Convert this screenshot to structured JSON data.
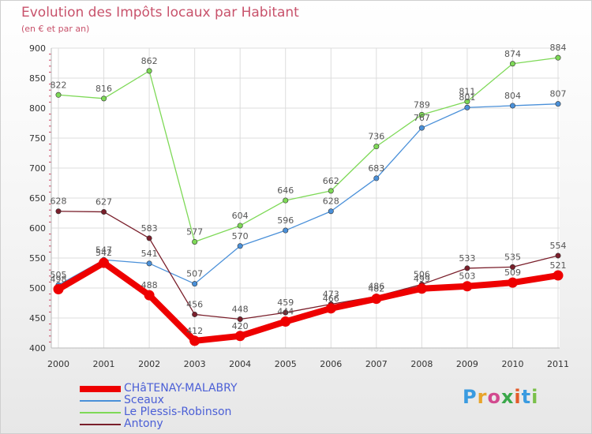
{
  "title": "Evolution des Impôts locaux par Habitant",
  "subtitle": "(en € et par an)",
  "logo": "Proxiti",
  "colors": {
    "title": "#c8526b",
    "legend_text": "#4b5fd6",
    "grid": "#dddddd",
    "axis": "#bbbbbb"
  },
  "chart_data": {
    "type": "line",
    "title": "Evolution des Impôts locaux par Habitant",
    "subtitle": "(en € et par an)",
    "x": [
      "2000",
      "2001",
      "2002",
      "2003",
      "2004",
      "2005",
      "2006",
      "2007",
      "2008",
      "2009",
      "2010",
      "2011"
    ],
    "ylim": [
      400,
      900
    ],
    "yticks": [
      400,
      450,
      500,
      550,
      600,
      650,
      700,
      750,
      800,
      850,
      900
    ],
    "grid": true,
    "legend_position": "bottom-left",
    "series": [
      {
        "name": "CHâTENAY-MALABRY",
        "color": "#ee0000",
        "values": [
          498,
          542,
          488,
          412,
          420,
          444,
          466,
          482,
          499,
          503,
          509,
          521
        ],
        "labels": [
          "498",
          "542",
          "488",
          "412",
          "420",
          "444",
          "466",
          "482",
          "499",
          "503",
          "509",
          "521"
        ]
      },
      {
        "name": "Sceaux",
        "color": "#4a90d9",
        "values": [
          505,
          547,
          541,
          507,
          570,
          596,
          628,
          683,
          767,
          801,
          804,
          807
        ],
        "labels": [
          "505",
          "547",
          "541",
          "507",
          "570",
          "596",
          "628",
          "683",
          "767",
          "801",
          "804",
          "807"
        ]
      },
      {
        "name": "Le Plessis-Robinson",
        "color": "#7ed957",
        "values": [
          822,
          816,
          862,
          577,
          604,
          646,
          662,
          736,
          789,
          811,
          874,
          884
        ],
        "labels": [
          "822",
          "816",
          "862",
          "577",
          "604",
          "646",
          "662",
          "736",
          "789",
          "811",
          "874",
          "884"
        ]
      },
      {
        "name": "Antony",
        "color": "#7a1f2b",
        "values": [
          628,
          627,
          583,
          456,
          448,
          459,
          473,
          486,
          506,
          533,
          535,
          554
        ],
        "labels": [
          "628",
          "627",
          "583",
          "456",
          "448",
          "459",
          "473",
          "486",
          "506",
          "533",
          "535",
          "554"
        ]
      }
    ]
  }
}
